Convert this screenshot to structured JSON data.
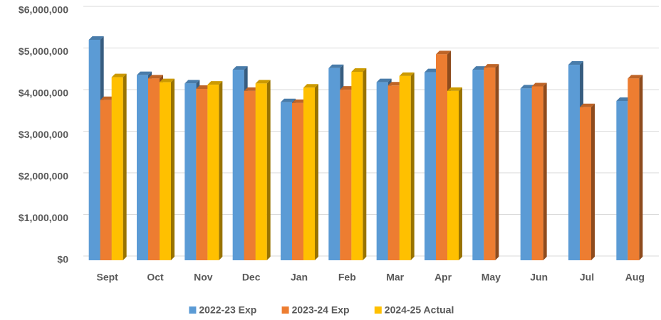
{
  "chart_data": {
    "type": "bar3d",
    "categories": [
      "Sept",
      "Oct",
      "Nov",
      "Dec",
      "Jan",
      "Feb",
      "Mar",
      "Apr",
      "May",
      "Jun",
      "Jul",
      "Aug"
    ],
    "series": [
      {
        "name": "2022-23 Exp",
        "color": "#5b9bd5",
        "values": [
          5300000,
          4450000,
          4250000,
          4580000,
          3800000,
          4620000,
          4280000,
          4520000,
          4580000,
          4130000,
          4700000,
          3830000
        ]
      },
      {
        "name": "2023-24 Exp",
        "color": "#ed7d31",
        "values": [
          3850000,
          4370000,
          4120000,
          4070000,
          3780000,
          4100000,
          4200000,
          4950000,
          4630000,
          4180000,
          3680000,
          4370000
        ]
      },
      {
        "name": "2024-25 Actual",
        "color": "#ffc000",
        "values": [
          4400000,
          4280000,
          4220000,
          4250000,
          4150000,
          4530000,
          4430000,
          4070000,
          null,
          null,
          null,
          null
        ]
      }
    ],
    "ylim": [
      0,
      6000000
    ],
    "yticks": [
      {
        "value": 0,
        "label": "$0"
      },
      {
        "value": 1000000,
        "label": "$1,000,000"
      },
      {
        "value": 2000000,
        "label": "$2,000,000"
      },
      {
        "value": 3000000,
        "label": "$3,000,000"
      },
      {
        "value": 4000000,
        "label": "$4,000,000"
      },
      {
        "value": 5000000,
        "label": "$5,000,000"
      },
      {
        "value": 6000000,
        "label": "$6,000,000"
      }
    ],
    "grid": true,
    "legend": "bottom"
  }
}
